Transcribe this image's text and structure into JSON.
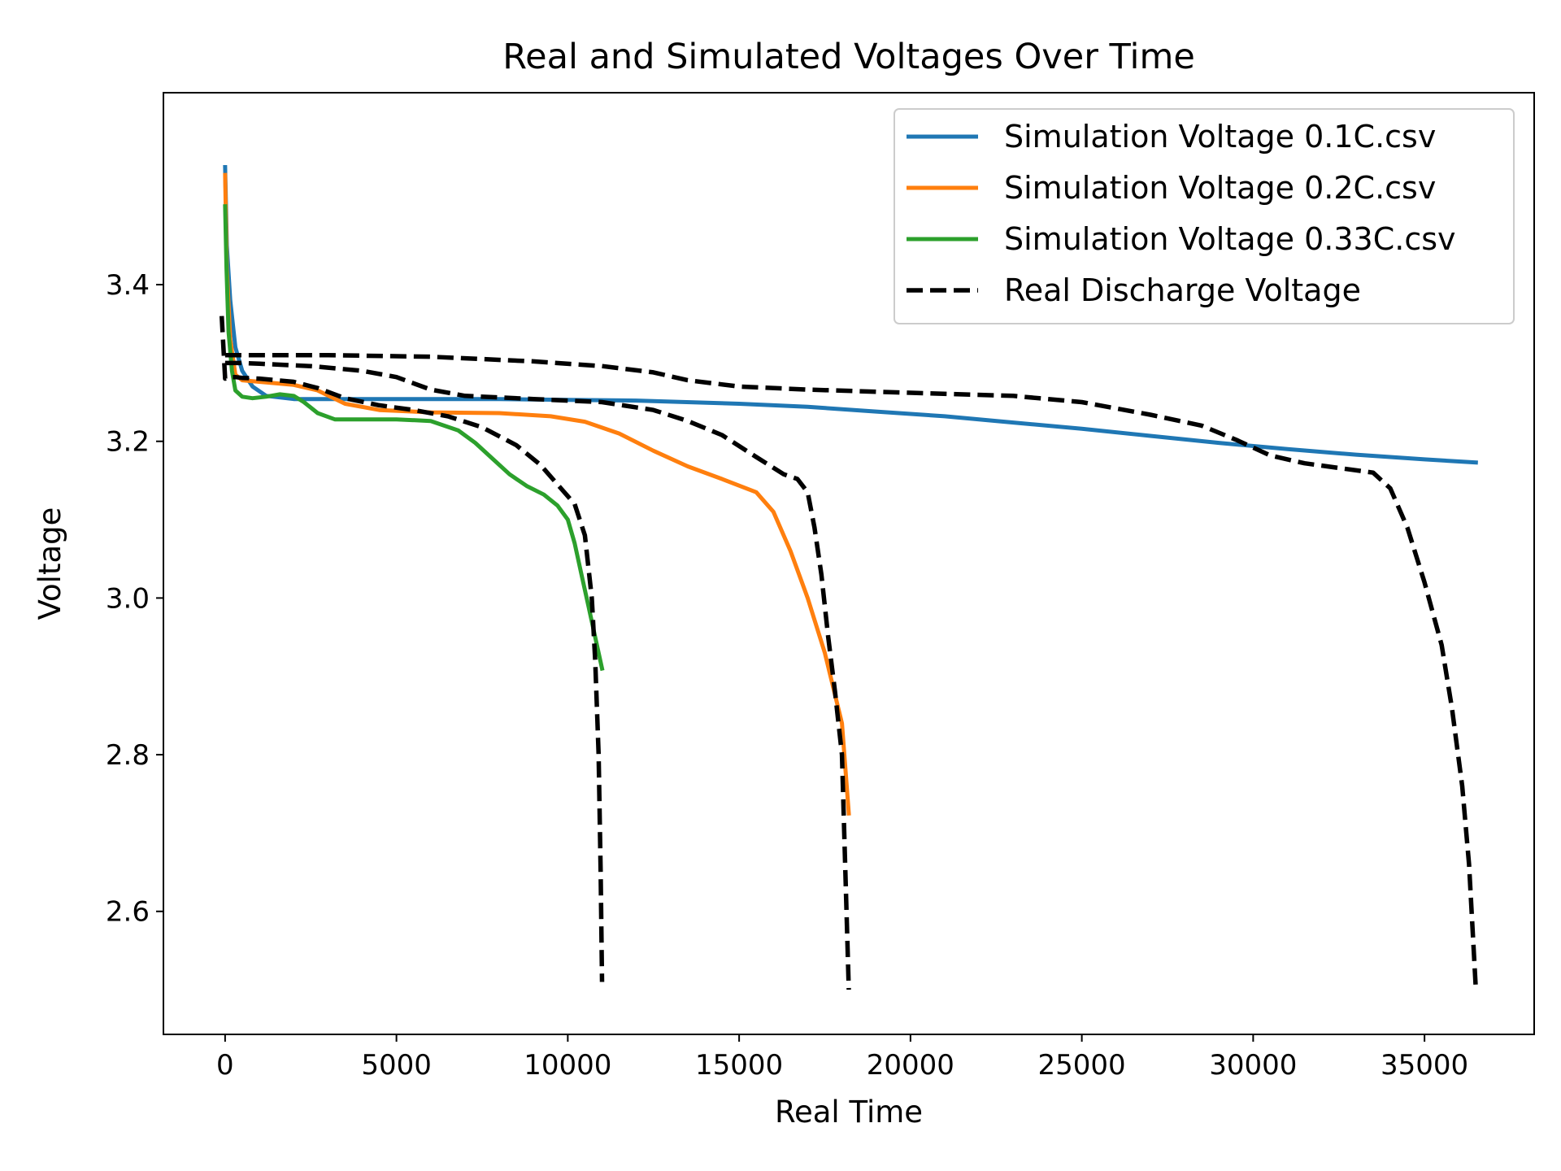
{
  "chart_data": {
    "type": "line",
    "title": "Real and Simulated Voltages Over Time",
    "xlabel": "Real Time",
    "ylabel": "Voltage",
    "xlim": [
      -1800,
      38200
    ],
    "ylim": [
      2.443,
      3.645
    ],
    "xticks": [
      0,
      5000,
      10000,
      15000,
      20000,
      25000,
      30000,
      35000
    ],
    "xtick_labels": [
      "0",
      "5000",
      "10000",
      "15000",
      "20000",
      "25000",
      "30000",
      "35000"
    ],
    "yticks": [
      2.6,
      2.8,
      3.0,
      3.2,
      3.4
    ],
    "ytick_labels": [
      "2.6",
      "2.8",
      "3.0",
      "3.2",
      "3.4"
    ],
    "grid": false,
    "legend_position": "top-right",
    "series": [
      {
        "name": "Simulation Voltage 0.1C.csv",
        "color": "#1f77b4",
        "style": "solid",
        "x": [
          0,
          50,
          150,
          300,
          500,
          800,
          1200,
          2000,
          3000,
          5000,
          8000,
          10000,
          12000,
          15000,
          17000,
          19000,
          21000,
          23000,
          25000,
          27000,
          29000,
          31000,
          33000,
          35000,
          36500
        ],
        "y": [
          3.55,
          3.45,
          3.38,
          3.32,
          3.29,
          3.27,
          3.258,
          3.254,
          3.254,
          3.254,
          3.254,
          3.253,
          3.252,
          3.248,
          3.244,
          3.238,
          3.232,
          3.224,
          3.216,
          3.207,
          3.198,
          3.19,
          3.183,
          3.177,
          3.173
        ]
      },
      {
        "name": "Simulation Voltage 0.2C.csv",
        "color": "#ff7f0e",
        "style": "solid",
        "x": [
          0,
          50,
          150,
          300,
          500,
          1000,
          2000,
          2700,
          3500,
          4500,
          6000,
          8000,
          9500,
          10500,
          11500,
          12500,
          13500,
          14500,
          15500,
          16000,
          16500,
          17000,
          17500,
          18000,
          18200
        ],
        "y": [
          3.54,
          3.42,
          3.33,
          3.285,
          3.278,
          3.276,
          3.272,
          3.265,
          3.248,
          3.24,
          3.237,
          3.236,
          3.232,
          3.225,
          3.21,
          3.188,
          3.168,
          3.152,
          3.135,
          3.11,
          3.06,
          3.0,
          2.93,
          2.84,
          2.725
        ]
      },
      {
        "name": "Simulation Voltage 0.33C.csv",
        "color": "#2ca02c",
        "style": "solid",
        "x": [
          0,
          40,
          100,
          200,
          300,
          500,
          800,
          1200,
          1600,
          2000,
          2300,
          2700,
          3200,
          4000,
          5000,
          6000,
          6800,
          7300,
          7800,
          8300,
          8800,
          9300,
          9700,
          10000,
          10200,
          10400,
          10600,
          10800,
          11000
        ],
        "y": [
          3.5,
          3.42,
          3.34,
          3.29,
          3.265,
          3.257,
          3.255,
          3.257,
          3.26,
          3.258,
          3.25,
          3.236,
          3.228,
          3.228,
          3.228,
          3.226,
          3.214,
          3.198,
          3.178,
          3.158,
          3.143,
          3.132,
          3.118,
          3.1,
          3.07,
          3.03,
          2.99,
          2.95,
          2.91
        ]
      },
      {
        "name": "Real Discharge Voltage",
        "color": "#000000",
        "style": "dashed",
        "segments": [
          {
            "x": [
              -100,
              0,
              100,
              300,
              500,
              1000,
              2000,
              2700,
              3500,
              4500,
              5500,
              6500,
              7500,
              8500,
              9200,
              9800,
              10200,
              10500,
              10700,
              10800,
              10900,
              10960,
              11000
            ],
            "y": [
              3.36,
              3.28,
              3.282,
              3.282,
              3.281,
              3.28,
              3.276,
              3.268,
              3.255,
              3.246,
              3.24,
              3.232,
              3.218,
              3.195,
              3.17,
              3.14,
              3.12,
              3.08,
              3.0,
              2.92,
              2.8,
              2.65,
              2.51
            ]
          },
          {
            "x": [
              0,
              100,
              500,
              1000,
              2500,
              4000,
              5000,
              6000,
              7000,
              9000,
              11000,
              12500,
              13500,
              14500,
              15500,
              16300,
              16700,
              17000,
              17200,
              17400,
              17600,
              17800,
              18000,
              18100,
              18200
            ],
            "y": [
              3.3,
              3.3,
              3.3,
              3.299,
              3.296,
              3.29,
              3.282,
              3.266,
              3.258,
              3.254,
              3.25,
              3.24,
              3.226,
              3.208,
              3.18,
              3.158,
              3.152,
              3.135,
              3.09,
              3.03,
              2.95,
              2.88,
              2.8,
              2.65,
              2.5
            ]
          },
          {
            "x": [
              0,
              100,
              500,
              1000,
              3000,
              6000,
              9000,
              11000,
              12500,
              13500,
              15000,
              17000,
              20000,
              23000,
              25000,
              27000,
              28500,
              29500,
              30500,
              31500,
              33500,
              34000,
              34500,
              35000,
              35500,
              35800,
              36100,
              36300,
              36400,
              36500
            ],
            "y": [
              3.31,
              3.31,
              3.31,
              3.31,
              3.31,
              3.308,
              3.302,
              3.296,
              3.288,
              3.278,
              3.27,
              3.266,
              3.262,
              3.258,
              3.25,
              3.234,
              3.22,
              3.202,
              3.182,
              3.172,
              3.16,
              3.14,
              3.09,
              3.02,
              2.94,
              2.86,
              2.76,
              2.66,
              2.58,
              2.5
            ]
          }
        ]
      }
    ]
  }
}
